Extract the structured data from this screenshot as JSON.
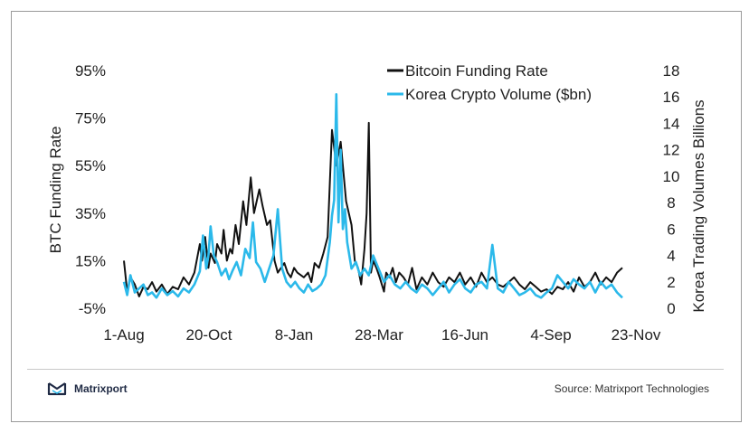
{
  "chart_data": {
    "type": "line",
    "title": "",
    "x_tick_labels": [
      "1-Aug",
      "20-Oct",
      "8-Jan",
      "28-Mar",
      "16-Jun",
      "4-Sep",
      "23-Nov"
    ],
    "left_axis": {
      "label": "BTC Funding Rate",
      "ylim": [
        -5,
        95
      ],
      "tick_labels": [
        "95%",
        "75%",
        "55%",
        "35%",
        "15%",
        "-5%"
      ],
      "tick_values": [
        95,
        75,
        55,
        35,
        15,
        -5
      ]
    },
    "right_axis": {
      "label": "Korea Trading  Volumes Billions",
      "ylim": [
        0,
        18
      ],
      "tick_labels": [
        "18",
        "16",
        "14",
        "12",
        "10",
        "8",
        "6",
        "4",
        "2",
        "0"
      ],
      "tick_values": [
        18,
        16,
        14,
        12,
        10,
        8,
        6,
        4,
        2,
        0
      ]
    },
    "x_range_days": [
      0,
      480
    ],
    "series": [
      {
        "name": "Bitcoin Funding Rate",
        "axis": "left",
        "color": "#111111",
        "x": [
          0,
          3,
          6,
          10,
          14,
          18,
          22,
          26,
          30,
          35,
          40,
          45,
          50,
          55,
          60,
          65,
          70,
          72,
          75,
          78,
          80,
          84,
          86,
          90,
          92,
          95,
          98,
          100,
          103,
          106,
          110,
          113,
          117,
          120,
          125,
          128,
          132,
          135,
          139,
          142,
          145,
          148,
          151,
          154,
          157,
          160,
          163,
          166,
          170,
          173,
          176,
          180,
          184,
          188,
          192,
          196,
          200,
          205,
          210,
          213,
          216,
          219,
          222,
          224,
          226,
          228,
          230,
          233,
          236,
          238,
          240,
          242,
          245,
          248,
          251,
          254,
          258,
          262,
          266,
          270,
          275,
          280,
          285,
          290,
          295,
          300,
          305,
          310,
          315,
          320,
          325,
          330,
          335,
          340,
          345,
          350,
          355,
          360,
          365,
          370,
          375,
          380,
          385,
          390,
          395,
          400,
          405,
          410,
          415,
          420,
          425,
          430,
          435,
          440,
          445,
          450,
          455,
          460
        ],
        "y": [
          15,
          2,
          8,
          5,
          0,
          4,
          3,
          6,
          2,
          5,
          1,
          4,
          3,
          8,
          5,
          10,
          22,
          15,
          25,
          12,
          18,
          14,
          22,
          18,
          28,
          15,
          20,
          18,
          30,
          22,
          40,
          30,
          50,
          35,
          45,
          38,
          30,
          32,
          15,
          10,
          12,
          14,
          10,
          8,
          12,
          10,
          9,
          8,
          10,
          6,
          14,
          12,
          18,
          25,
          70,
          55,
          65,
          40,
          30,
          15,
          12,
          5,
          20,
          35,
          73,
          10,
          15,
          12,
          8,
          5,
          2,
          10,
          8,
          12,
          6,
          10,
          8,
          5,
          12,
          3,
          8,
          5,
          10,
          6,
          4,
          8,
          6,
          10,
          5,
          8,
          4,
          10,
          6,
          8,
          5,
          4,
          6,
          8,
          5,
          3,
          6,
          4,
          2,
          3,
          1,
          4,
          3,
          6,
          2,
          8,
          4,
          6,
          10,
          5,
          8,
          6,
          10,
          12
        ]
      },
      {
        "name": "Korea Crypto Volume ($bn)",
        "axis": "right",
        "color": "#2bb9ea",
        "x": [
          0,
          3,
          6,
          10,
          14,
          18,
          22,
          26,
          30,
          35,
          40,
          45,
          50,
          55,
          60,
          65,
          70,
          73,
          76,
          78,
          80,
          83,
          86,
          90,
          94,
          97,
          100,
          104,
          108,
          112,
          116,
          119,
          122,
          126,
          130,
          134,
          138,
          142,
          146,
          150,
          154,
          158,
          162,
          166,
          170,
          174,
          178,
          182,
          186,
          190,
          192,
          194,
          196,
          198,
          200,
          202,
          204,
          206,
          210,
          214,
          218,
          222,
          226,
          230,
          235,
          240,
          245,
          250,
          255,
          260,
          265,
          270,
          275,
          280,
          285,
          290,
          295,
          300,
          305,
          310,
          315,
          320,
          325,
          330,
          335,
          340,
          345,
          350,
          355,
          360,
          365,
          370,
          375,
          380,
          385,
          390,
          395,
          400,
          405,
          410,
          415,
          420,
          425,
          430,
          435,
          440,
          445,
          450,
          455,
          460
        ],
        "y": [
          2,
          1,
          2.5,
          1.2,
          1.5,
          1.8,
          1,
          1.2,
          0.8,
          1.5,
          1,
          1.3,
          0.9,
          1.5,
          1.2,
          1.8,
          2.8,
          5.5,
          3,
          4,
          6.2,
          4,
          3.5,
          2.5,
          3,
          2.2,
          2.8,
          3.5,
          2.5,
          4.5,
          3.8,
          6.5,
          3.5,
          3,
          2,
          3,
          4,
          7.5,
          3,
          2,
          1.6,
          2,
          1.5,
          1.2,
          1.8,
          1.3,
          1.5,
          1.8,
          2.5,
          5,
          7,
          8.2,
          16.2,
          6.5,
          12,
          6,
          7.5,
          5,
          3,
          3.5,
          2.5,
          3,
          2.5,
          4,
          3,
          2,
          2.5,
          1.8,
          1.5,
          2,
          1.5,
          1.2,
          1.8,
          1.5,
          1,
          1.5,
          2,
          1.2,
          1.8,
          2.2,
          1.5,
          1.2,
          1.8,
          2,
          1.5,
          4.8,
          1.5,
          1.2,
          2,
          1.5,
          1,
          1.2,
          1.5,
          1,
          0.8,
          1.2,
          1.5,
          2.5,
          2,
          1.5,
          2.2,
          1.8,
          1.5,
          2,
          1.2,
          2,
          1.5,
          1.8,
          1.2,
          0.8
        ]
      }
    ]
  },
  "legend": {
    "funding_label": "Bitcoin Funding Rate",
    "volume_label": "Korea Crypto Volume ($bn)"
  },
  "footer": {
    "brand": "Matrixport",
    "source": "Source: Matrixport Technologies"
  },
  "colors": {
    "funding": "#111111",
    "volume": "#2bb9ea",
    "brand": "#1f2a44"
  }
}
